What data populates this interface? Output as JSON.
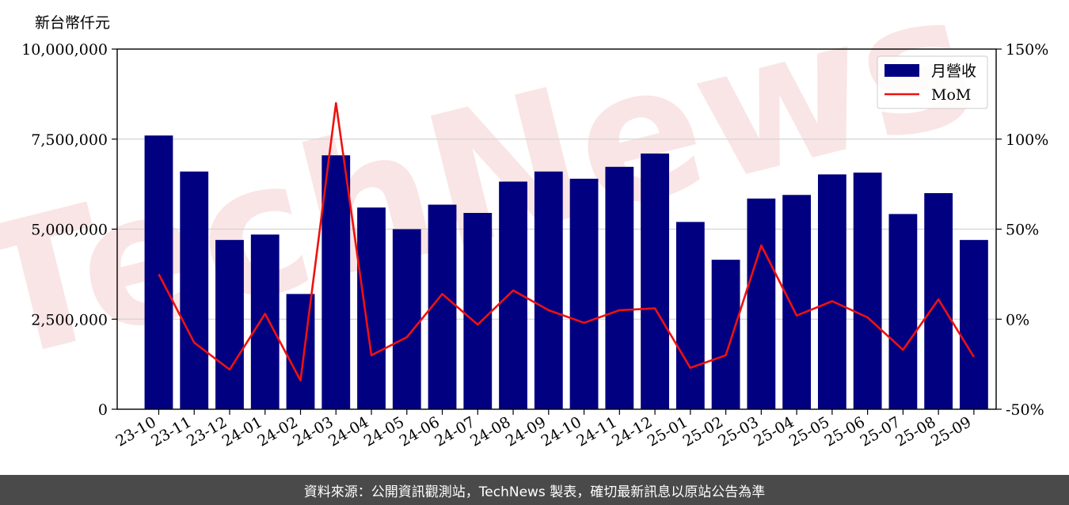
{
  "unit_label": "新台幣仟元",
  "footer": "資料來源：公開資訊觀測站，TechNews 製表，確切最新訊息以原站公告為準",
  "watermark": "TechNews",
  "colors": {
    "bar": "#000080",
    "line": "#ee1111",
    "grid": "#d4d4d4",
    "footer_bg": "#4a4a4a",
    "watermark": "#f4cccc"
  },
  "chart_data": {
    "type": "bar",
    "categories": [
      "23-10",
      "23-11",
      "23-12",
      "24-01",
      "24-02",
      "24-03",
      "24-04",
      "24-05",
      "24-06",
      "24-07",
      "24-08",
      "24-09",
      "24-10",
      "24-11",
      "24-12",
      "25-01",
      "25-02",
      "25-03",
      "25-04",
      "25-05",
      "25-06",
      "25-07",
      "25-08",
      "25-09"
    ],
    "series": [
      {
        "name": "月營收",
        "type": "bar",
        "axis": "left",
        "values": [
          7600000,
          6600000,
          4700000,
          4850000,
          3200000,
          7050000,
          5600000,
          5000000,
          5680000,
          5450000,
          6320000,
          6600000,
          6400000,
          6730000,
          7100000,
          5200000,
          4150000,
          5850000,
          5950000,
          6520000,
          6570000,
          5420000,
          6000000,
          4700000
        ]
      },
      {
        "name": "MoM",
        "type": "line",
        "axis": "right",
        "values": [
          25,
          -13,
          -28,
          3,
          -34,
          120,
          -20,
          -10,
          14,
          -3,
          16,
          5,
          -2,
          5,
          6,
          -27,
          -20,
          41,
          2,
          10,
          1,
          -17,
          11,
          -21
        ]
      }
    ],
    "y_left": {
      "ylim": [
        0,
        10000000
      ],
      "ticks": [
        0,
        2500000,
        5000000,
        7500000,
        10000000
      ],
      "tick_labels": [
        "0",
        "2,500,000",
        "5,000,000",
        "7,500,000",
        "10,000,000"
      ]
    },
    "y_right": {
      "ylim": [
        -50,
        150
      ],
      "ticks": [
        -50,
        0,
        50,
        100,
        150
      ],
      "tick_labels": [
        "-50%",
        "0%",
        "50%",
        "100%",
        "150%"
      ]
    },
    "grid": true,
    "legend": "top-right"
  }
}
